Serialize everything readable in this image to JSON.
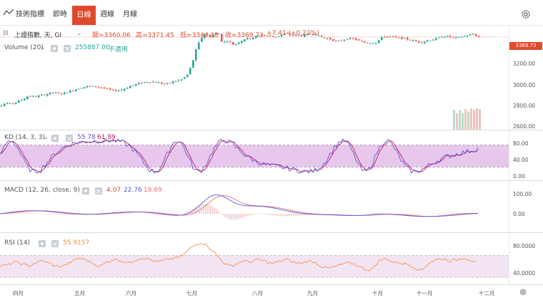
{
  "toolbar": {
    "indicators_label": "技術指標",
    "intraday_tab": "即時",
    "daily_tab": "日線",
    "weekly_tab": "週線",
    "monthly_tab": "月線",
    "settings_icon": "gear-icon"
  },
  "price_panel": {
    "symbol_line": "上證指數, 天, GI",
    "open_label": "開=3360.06",
    "high_label": "高=3371.45",
    "low_label": "低=3344.38",
    "close_label": "收=3369.73",
    "change_label": "+7.41 (+0.22%)",
    "volume_label": "Volume (20)",
    "volume_value": "255887.00",
    "volume_note": "不適用",
    "last_price_tag": "3369.73",
    "ticks": [
      "3200.00",
      "3000.00",
      "2800.00",
      "2600.00"
    ],
    "up_color": "#26a69a",
    "down_color": "#ef5350"
  },
  "kd_panel": {
    "label": "KD (14, 3, 3)",
    "k_value": "55.78",
    "d_value": "61.89",
    "ticks": [
      "80.00",
      "40.00",
      "0.00"
    ],
    "k_color": "#5b56d6",
    "d_color": "#c2185b"
  },
  "macd_panel": {
    "label": "MACD (12, 26, close, 9)",
    "hist_value": "4.07",
    "macd_value": "22.76",
    "signal_value": "18.69",
    "ticks": [
      "100.00",
      "0.00"
    ],
    "macd_color": "#5b56d6",
    "signal_color": "#e57373"
  },
  "rsi_panel": {
    "label": "RSI (14)",
    "value": "55.9157",
    "ticks": [
      "80.0000",
      "40.0000"
    ],
    "line_color": "#ef8a45"
  },
  "x_axis": {
    "months": [
      "四月",
      "五月",
      "六月",
      "七月",
      "八月",
      "九月",
      "十月",
      "十一月",
      "十二月"
    ]
  },
  "chart_data": {
    "type": "line",
    "title": "上證指數, 天, GI",
    "xlabel": "",
    "ylabel": "",
    "last_close": 3369.73,
    "price_ylim": [
      2600,
      3400
    ],
    "price_path": [
      [
        0,
        2780
      ],
      [
        8,
        2800
      ],
      [
        15,
        2790
      ],
      [
        22,
        2810
      ],
      [
        30,
        2830
      ],
      [
        38,
        2860
      ],
      [
        48,
        2855
      ],
      [
        60,
        2870
      ],
      [
        72,
        2890
      ],
      [
        85,
        2880
      ],
      [
        98,
        2905
      ],
      [
        110,
        2930
      ],
      [
        122,
        2945
      ],
      [
        134,
        2940
      ],
      [
        146,
        2925
      ],
      [
        158,
        2905
      ],
      [
        170,
        2915
      ],
      [
        182,
        2950
      ],
      [
        194,
        2970
      ],
      [
        206,
        2985
      ],
      [
        218,
        2980
      ],
      [
        230,
        2960
      ],
      [
        242,
        2985
      ],
      [
        254,
        3005
      ],
      [
        262,
        3050
      ],
      [
        268,
        3150
      ],
      [
        274,
        3280
      ],
      [
        280,
        3360
      ],
      [
        286,
        3405
      ],
      [
        292,
        3370
      ],
      [
        298,
        3395
      ],
      [
        304,
        3410
      ],
      [
        310,
        3320
      ],
      [
        318,
        3340
      ],
      [
        326,
        3300
      ],
      [
        334,
        3330
      ],
      [
        342,
        3355
      ],
      [
        350,
        3360
      ],
      [
        358,
        3375
      ],
      [
        366,
        3390
      ],
      [
        374,
        3380
      ],
      [
        382,
        3370
      ],
      [
        390,
        3380
      ],
      [
        398,
        3400
      ],
      [
        406,
        3385
      ],
      [
        414,
        3385
      ],
      [
        422,
        3380
      ],
      [
        430,
        3395
      ],
      [
        438,
        3400
      ],
      [
        446,
        3375
      ],
      [
        454,
        3360
      ],
      [
        462,
        3350
      ],
      [
        470,
        3330
      ],
      [
        478,
        3345
      ],
      [
        486,
        3355
      ],
      [
        494,
        3355
      ],
      [
        502,
        3335
      ],
      [
        510,
        3320
      ],
      [
        518,
        3320
      ],
      [
        526,
        3325
      ],
      [
        534,
        3370
      ],
      [
        542,
        3375
      ],
      [
        550,
        3368
      ],
      [
        558,
        3362
      ],
      [
        566,
        3355
      ],
      [
        574,
        3342
      ],
      [
        582,
        3330
      ],
      [
        590,
        3325
      ],
      [
        598,
        3342
      ],
      [
        606,
        3350
      ],
      [
        614,
        3365
      ],
      [
        622,
        3378
      ],
      [
        630,
        3368
      ],
      [
        638,
        3360
      ],
      [
        646,
        3375
      ],
      [
        654,
        3385
      ],
      [
        660,
        3395
      ],
      [
        666,
        3380
      ],
      [
        670,
        3370
      ]
    ],
    "rsi_range": [
      20,
      100
    ],
    "rsi_path": [
      [
        0,
        50
      ],
      [
        10,
        52
      ],
      [
        20,
        58
      ],
      [
        30,
        55
      ],
      [
        40,
        50
      ],
      [
        50,
        57
      ],
      [
        60,
        60
      ],
      [
        70,
        55
      ],
      [
        80,
        49
      ],
      [
        90,
        52
      ],
      [
        100,
        58
      ],
      [
        110,
        65
      ],
      [
        120,
        62
      ],
      [
        130,
        55
      ],
      [
        140,
        50
      ],
      [
        150,
        58
      ],
      [
        160,
        63
      ],
      [
        170,
        60
      ],
      [
        180,
        56
      ],
      [
        190,
        62
      ],
      [
        200,
        66
      ],
      [
        210,
        62
      ],
      [
        220,
        58
      ],
      [
        230,
        61
      ],
      [
        240,
        64
      ],
      [
        250,
        66
      ],
      [
        258,
        72
      ],
      [
        266,
        82
      ],
      [
        274,
        90
      ],
      [
        282,
        93
      ],
      [
        290,
        88
      ],
      [
        298,
        78
      ],
      [
        306,
        66
      ],
      [
        314,
        56
      ],
      [
        322,
        50
      ],
      [
        330,
        54
      ],
      [
        340,
        60
      ],
      [
        350,
        58
      ],
      [
        360,
        62
      ],
      [
        370,
        60
      ],
      [
        380,
        55
      ],
      [
        390,
        58
      ],
      [
        400,
        63
      ],
      [
        410,
        58
      ],
      [
        420,
        55
      ],
      [
        430,
        60
      ],
      [
        440,
        58
      ],
      [
        450,
        50
      ],
      [
        460,
        46
      ],
      [
        470,
        50
      ],
      [
        480,
        54
      ],
      [
        490,
        56
      ],
      [
        500,
        52
      ],
      [
        510,
        45
      ],
      [
        520,
        43
      ],
      [
        530,
        60
      ],
      [
        540,
        64
      ],
      [
        550,
        58
      ],
      [
        560,
        56
      ],
      [
        570,
        54
      ],
      [
        580,
        48
      ],
      [
        590,
        42
      ],
      [
        600,
        56
      ],
      [
        610,
        62
      ],
      [
        620,
        64
      ],
      [
        630,
        60
      ],
      [
        640,
        62
      ],
      [
        650,
        66
      ],
      [
        660,
        61
      ],
      [
        668,
        56
      ]
    ]
  }
}
